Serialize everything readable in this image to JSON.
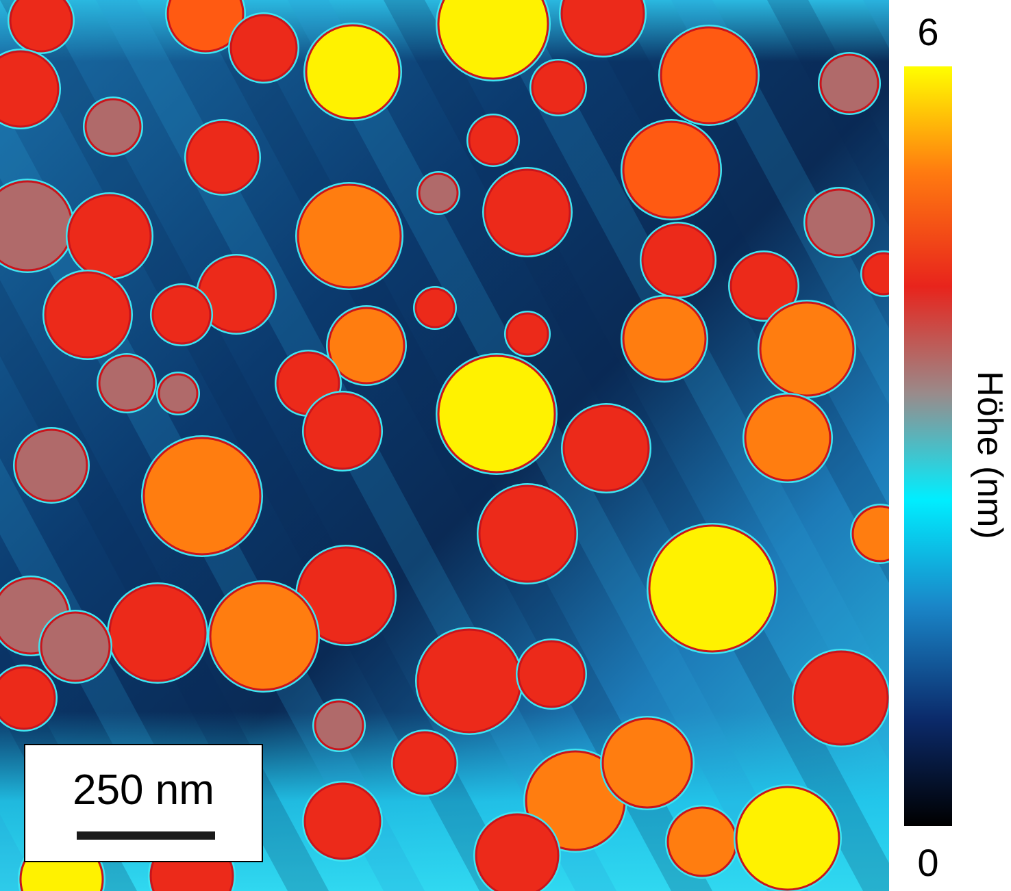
{
  "image": {
    "type": "AFM height map",
    "colors": {
      "background_dark": "#0a2a55",
      "background_light": "#2bc6e6",
      "island_outline": "#3fe6f2"
    }
  },
  "colorbar": {
    "max_label": "6",
    "min_label": "0",
    "title": "Höhe (nm)",
    "range": [
      0,
      6
    ],
    "stops": [
      "#000000",
      "#0b2a6a",
      "#1a86c8",
      "#00eeff",
      "#9a8a8a",
      "#e8241c",
      "#ff7a10",
      "#ffff00"
    ]
  },
  "scale_bar": {
    "label": "250 nm"
  }
}
